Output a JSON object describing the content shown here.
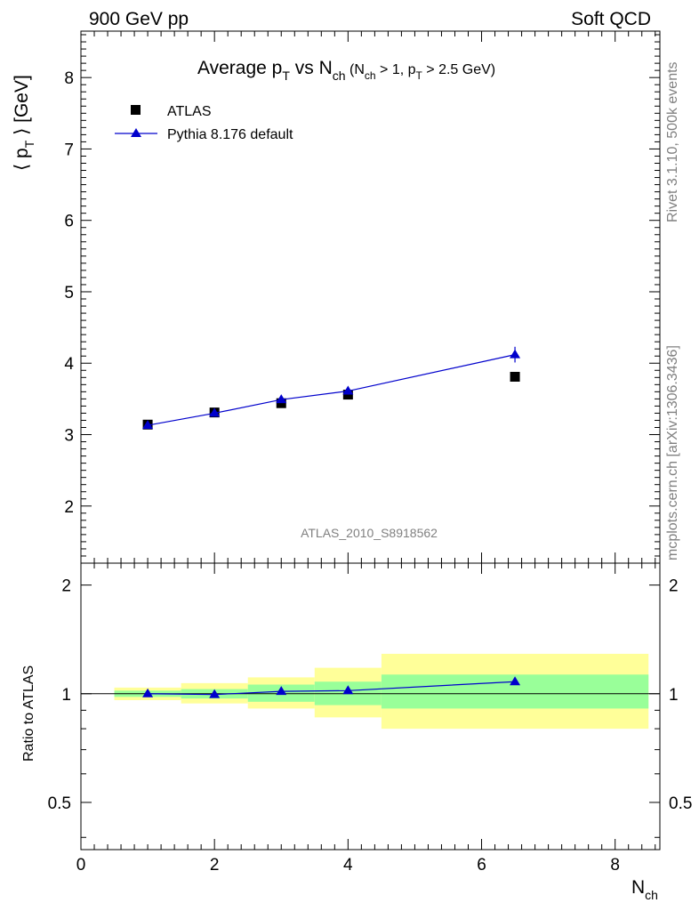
{
  "header": {
    "left": "900 GeV pp",
    "right": "Soft QCD"
  },
  "side_text": {
    "rivet": "Rivet 3.1.10,  500k events",
    "mcplots": "mcplots.cern.ch [arXiv:1306.3436]"
  },
  "chart_data": [
    {
      "type": "scatter",
      "title": {
        "main": "Average p",
        "main_sub": "T",
        "vs": " vs N",
        "vs_sub": "ch",
        "cut_open": " (N",
        "cut_sub1": "ch",
        "cut_mid": " > 1, p",
        "cut_sub2": "T",
        "cut_close": " > 2.5 GeV)"
      },
      "ylabel": {
        "open": "⟨ p",
        "sub": "T",
        "close": " ⟩  [GeV]"
      },
      "watermark": "ATLAS_2010_S8918562",
      "xlim": [
        0,
        8.67
      ],
      "ylim": [
        1.2,
        8.65
      ],
      "y_ticks": [
        2,
        3,
        4,
        5,
        6,
        7,
        8
      ],
      "y_tick_labels": [
        "2",
        "3",
        "4",
        "5",
        "6",
        "7",
        "8"
      ],
      "legend_position": "top-left",
      "series": [
        {
          "name": "ATLAS",
          "marker": "square",
          "color": "#000000",
          "x": [
            1,
            2,
            3,
            4,
            6.5
          ],
          "y": [
            3.14,
            3.31,
            3.44,
            3.56,
            3.81
          ]
        },
        {
          "name": "Pythia 8.176 default",
          "marker": "triangle",
          "color": "#0000cc",
          "x": [
            1,
            2,
            3,
            4,
            6.5
          ],
          "y": [
            3.13,
            3.3,
            3.49,
            3.61,
            4.12
          ],
          "yerr": [
            0.02,
            0.03,
            0.04,
            0.05,
            0.11
          ]
        }
      ]
    },
    {
      "type": "scatter",
      "ylabel": "Ratio to ATLAS",
      "xlabel_main": "N",
      "xlabel_sub": "ch",
      "xlim": [
        0,
        8.67
      ],
      "ylim": [
        0.37,
        2.3
      ],
      "log_y": true,
      "x_ticks": [
        0,
        2,
        4,
        6,
        8
      ],
      "x_tick_labels": [
        "0",
        "2",
        "4",
        "6",
        "8"
      ],
      "y_ticks": [
        0.5,
        1,
        2
      ],
      "y_tick_labels": [
        "0.5",
        "1",
        "2"
      ],
      "bins": [
        {
          "x_low": 0.5,
          "x_high": 1.5,
          "green": [
            0.98,
            1.02
          ],
          "yellow": [
            0.96,
            1.04
          ]
        },
        {
          "x_low": 1.5,
          "x_high": 2.5,
          "green": [
            0.97,
            1.03
          ],
          "yellow": [
            0.94,
            1.07
          ]
        },
        {
          "x_low": 2.5,
          "x_high": 3.5,
          "green": [
            0.95,
            1.06
          ],
          "yellow": [
            0.91,
            1.11
          ]
        },
        {
          "x_low": 3.5,
          "x_high": 4.5,
          "green": [
            0.93,
            1.08
          ],
          "yellow": [
            0.86,
            1.18
          ]
        },
        {
          "x_low": 4.5,
          "x_high": 8.5,
          "green": [
            0.91,
            1.13
          ],
          "yellow": [
            0.8,
            1.29
          ]
        }
      ],
      "series": [
        {
          "name": "Pythia 8.176 default",
          "marker": "triangle",
          "color": "#0000cc",
          "x": [
            1,
            2,
            3,
            4,
            6.5
          ],
          "y": [
            1.0,
            0.995,
            1.015,
            1.02,
            1.08
          ]
        }
      ]
    }
  ]
}
